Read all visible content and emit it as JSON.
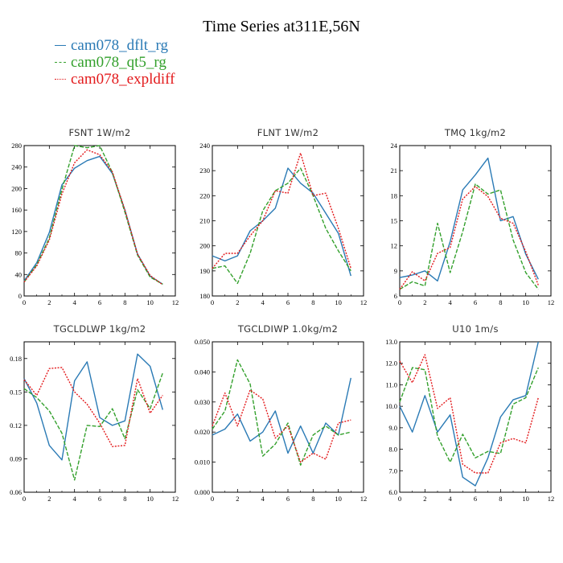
{
  "title": "Time Series at311E,56N",
  "colors": {
    "dflt": "#2a7ab5",
    "qt5": "#33a02c",
    "expldiff": "#e31a1c"
  },
  "legend": [
    {
      "label": "cam078_dflt_rg",
      "color": "#2a7ab5",
      "style": "solid"
    },
    {
      "label": "cam078_qt5_rg",
      "color": "#33a02c",
      "style": "dash"
    },
    {
      "label": "cam078_expldiff",
      "color": "#e31a1c",
      "style": "dot"
    }
  ],
  "chart_data": [
    {
      "type": "line",
      "title": "FSNT   1W/m2",
      "x": [
        0,
        1,
        2,
        3,
        4,
        5,
        6,
        7,
        8,
        9,
        10,
        11
      ],
      "xlim": [
        0,
        12
      ],
      "xticks": [
        0,
        2,
        4,
        6,
        8,
        10,
        12
      ],
      "ylim": [
        0,
        280
      ],
      "yticks": [
        0,
        40,
        80,
        120,
        160,
        200,
        240,
        280
      ],
      "ytick_labels": [
        "0",
        "40",
        "80",
        "120",
        "160",
        "200",
        "240",
        "280"
      ],
      "series": [
        {
          "name": "cam078_dflt_rg",
          "values": [
            28,
            62,
            118,
            207,
            238,
            252,
            260,
            228,
            160,
            78,
            37,
            22
          ]
        },
        {
          "name": "cam078_qt5_rg",
          "values": [
            26,
            58,
            108,
            198,
            280,
            276,
            280,
            230,
            156,
            76,
            35,
            22
          ]
        },
        {
          "name": "cam078_expldiff",
          "values": [
            26,
            56,
            104,
            190,
            248,
            272,
            263,
            231,
            160,
            78,
            38,
            21
          ]
        }
      ]
    },
    {
      "type": "line",
      "title": "FLNT   1W/m2",
      "x": [
        0,
        1,
        2,
        3,
        4,
        5,
        6,
        7,
        8,
        9,
        10,
        11
      ],
      "xlim": [
        0,
        12
      ],
      "xticks": [
        0,
        2,
        4,
        6,
        8,
        10,
        12
      ],
      "ylim": [
        180,
        240
      ],
      "yticks": [
        180,
        190,
        200,
        210,
        220,
        230,
        240
      ],
      "ytick_labels": [
        "180",
        "190",
        "200",
        "210",
        "220",
        "230",
        "240"
      ],
      "series": [
        {
          "name": "cam078_dflt_rg",
          "values": [
            196,
            194,
            196,
            206,
            210,
            215,
            231,
            225,
            221,
            213,
            205,
            188
          ]
        },
        {
          "name": "cam078_qt5_rg",
          "values": [
            191,
            192,
            185,
            197,
            214,
            222,
            225,
            231,
            220,
            207,
            198,
            190
          ]
        },
        {
          "name": "cam078_expldiff",
          "values": [
            191,
            197,
            197,
            204,
            210,
            222,
            221,
            237,
            220,
            221,
            207,
            191
          ]
        }
      ]
    },
    {
      "type": "line",
      "title": "TMQ   1kg/m2",
      "x": [
        0,
        1,
        2,
        3,
        4,
        5,
        6,
        7,
        8,
        9,
        10,
        11
      ],
      "xlim": [
        0,
        12
      ],
      "xticks": [
        0,
        2,
        4,
        6,
        8,
        10,
        12
      ],
      "ylim": [
        6,
        24
      ],
      "yticks": [
        6,
        9,
        12,
        15,
        18,
        21,
        24
      ],
      "ytick_labels": [
        "6",
        "9",
        "12",
        "15",
        "18",
        "21",
        "24"
      ],
      "series": [
        {
          "name": "cam078_dflt_rg",
          "values": [
            8.2,
            8.5,
            9.0,
            7.8,
            12.5,
            18.7,
            20.5,
            22.5,
            15.0,
            15.5,
            11.0,
            8.0
          ]
        },
        {
          "name": "cam078_qt5_rg",
          "values": [
            6.8,
            7.7,
            7.2,
            14.7,
            8.8,
            13.7,
            19.4,
            18.2,
            18.7,
            12.7,
            8.8,
            6.8
          ]
        },
        {
          "name": "cam078_expldiff",
          "values": [
            6.8,
            8.9,
            7.8,
            11.1,
            11.8,
            17.6,
            19.1,
            17.9,
            15.3,
            14.7,
            11.3,
            7.3
          ]
        }
      ]
    },
    {
      "type": "line",
      "title": "TGCLDLWP   1kg/m2",
      "x": [
        0,
        1,
        2,
        3,
        4,
        5,
        6,
        7,
        8,
        9,
        10,
        11
      ],
      "xlim": [
        0,
        12
      ],
      "xticks": [
        0,
        2,
        4,
        6,
        8,
        10,
        12
      ],
      "ylim": [
        0.06,
        0.195
      ],
      "yticks": [
        0.06,
        0.09,
        0.12,
        0.15,
        0.18
      ],
      "ytick_labels": [
        "0.06",
        "0.09",
        "0.12",
        "0.15",
        "0.18"
      ],
      "series": [
        {
          "name": "cam078_dflt_rg",
          "values": [
            0.162,
            0.14,
            0.102,
            0.089,
            0.16,
            0.177,
            0.127,
            0.12,
            0.124,
            0.184,
            0.173,
            0.134
          ]
        },
        {
          "name": "cam078_qt5_rg",
          "values": [
            0.153,
            0.145,
            0.133,
            0.113,
            0.071,
            0.12,
            0.119,
            0.135,
            0.108,
            0.152,
            0.135,
            0.167
          ]
        },
        {
          "name": "cam078_expldiff",
          "values": [
            0.161,
            0.147,
            0.171,
            0.172,
            0.15,
            0.139,
            0.122,
            0.101,
            0.102,
            0.162,
            0.131,
            0.147
          ]
        }
      ]
    },
    {
      "type": "line",
      "title": "TGCLDIWP   1.0kg/m2",
      "x": [
        0,
        1,
        2,
        3,
        4,
        5,
        6,
        7,
        8,
        9,
        10,
        11
      ],
      "xlim": [
        0,
        12
      ],
      "xticks": [
        0,
        2,
        4,
        6,
        8,
        10,
        12
      ],
      "ylim": [
        0,
        0.05
      ],
      "yticks": [
        0,
        0.01,
        0.02,
        0.03,
        0.04,
        0.05
      ],
      "ytick_labels": [
        "0.000",
        "0.010",
        "0.020",
        "0.030",
        "0.040",
        "0.050"
      ],
      "series": [
        {
          "name": "cam078_dflt_rg",
          "values": [
            0.019,
            0.021,
            0.026,
            0.017,
            0.02,
            0.027,
            0.013,
            0.022,
            0.013,
            0.023,
            0.019,
            0.038
          ]
        },
        {
          "name": "cam078_qt5_rg",
          "values": [
            0.021,
            0.027,
            0.044,
            0.036,
            0.012,
            0.016,
            0.023,
            0.009,
            0.019,
            0.022,
            0.019,
            0.02
          ]
        },
        {
          "name": "cam078_expldiff",
          "values": [
            0.022,
            0.033,
            0.022,
            0.034,
            0.031,
            0.018,
            0.022,
            0.01,
            0.013,
            0.011,
            0.023,
            0.024
          ]
        }
      ]
    },
    {
      "type": "line",
      "title": "U10   1m/s",
      "x": [
        0,
        1,
        2,
        3,
        4,
        5,
        6,
        7,
        8,
        9,
        10,
        11
      ],
      "xlim": [
        0,
        12
      ],
      "xticks": [
        0,
        2,
        4,
        6,
        8,
        10,
        12
      ],
      "ylim": [
        6,
        13
      ],
      "yticks": [
        6,
        7,
        8,
        9,
        10,
        11,
        12,
        13
      ],
      "ytick_labels": [
        "6.0",
        "7.0",
        "8.0",
        "9.0",
        "10.0",
        "11.0",
        "12.0",
        "13.0"
      ],
      "series": [
        {
          "name": "cam078_dflt_rg",
          "values": [
            10.0,
            8.8,
            10.5,
            8.8,
            9.6,
            6.7,
            6.3,
            7.6,
            9.5,
            10.3,
            10.5,
            13.0
          ]
        },
        {
          "name": "cam078_qt5_rg",
          "values": [
            10.2,
            11.8,
            11.7,
            8.6,
            7.4,
            8.7,
            7.6,
            7.9,
            7.8,
            10.1,
            10.4,
            11.8
          ]
        },
        {
          "name": "cam078_expldiff",
          "values": [
            12.1,
            11.1,
            12.4,
            9.9,
            10.4,
            7.3,
            6.9,
            6.9,
            8.3,
            8.5,
            8.3,
            10.4
          ]
        }
      ]
    }
  ]
}
